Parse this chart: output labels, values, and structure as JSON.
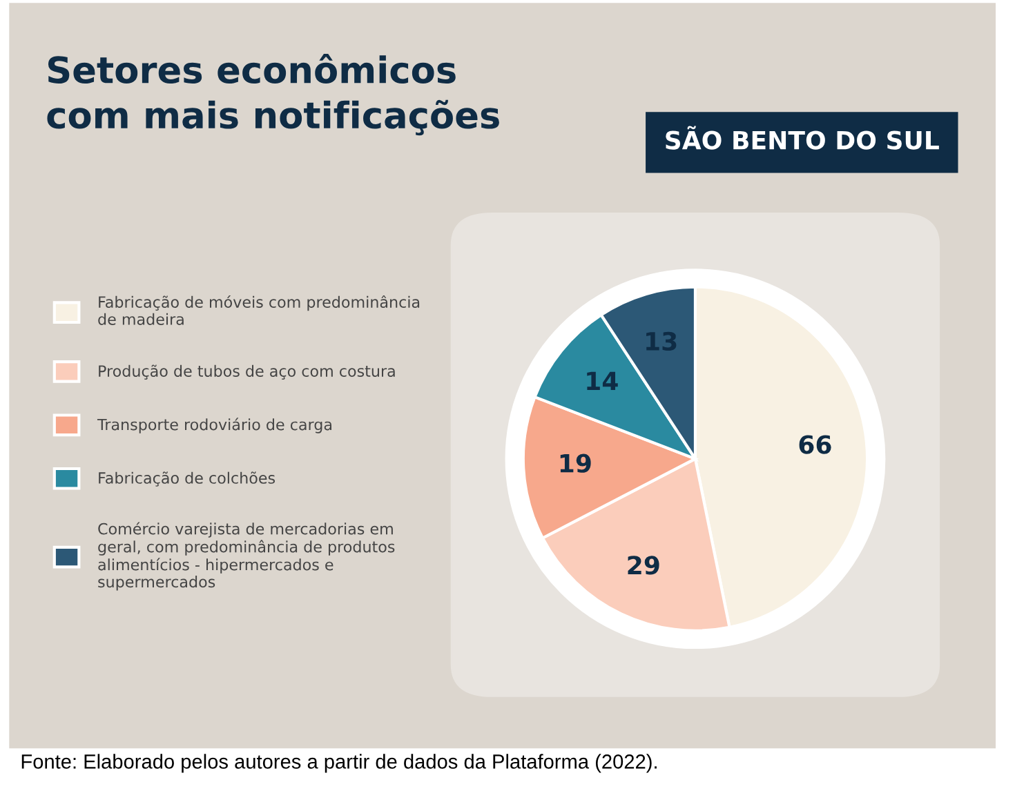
{
  "chart_data": {
    "type": "pie",
    "title": "Setores econômicos\ncom mais notificações",
    "subtitle": "SÃO BENTO DO SUL",
    "categories": [
      "Fabricação de móveis com predominância\nde madeira",
      "Produção de tubos de aço com costura",
      "Transporte rodoviário de carga",
      "Fabricação de colchões",
      "Comércio varejista de mercadorias em\ngeral, com predominância de produtos\nalimentícios - hipermercados e\nsupermercados"
    ],
    "values": [
      66,
      29,
      19,
      14,
      13
    ],
    "colors": [
      "#f8f1e3",
      "#fbcdbb",
      "#f7a88c",
      "#2a8aa0",
      "#2c5876"
    ],
    "data_labels": true,
    "legend": "left",
    "annotations": [
      "Fonte: Elaborado pelos autores a partir de dados da Plataforma (2022)."
    ]
  }
}
